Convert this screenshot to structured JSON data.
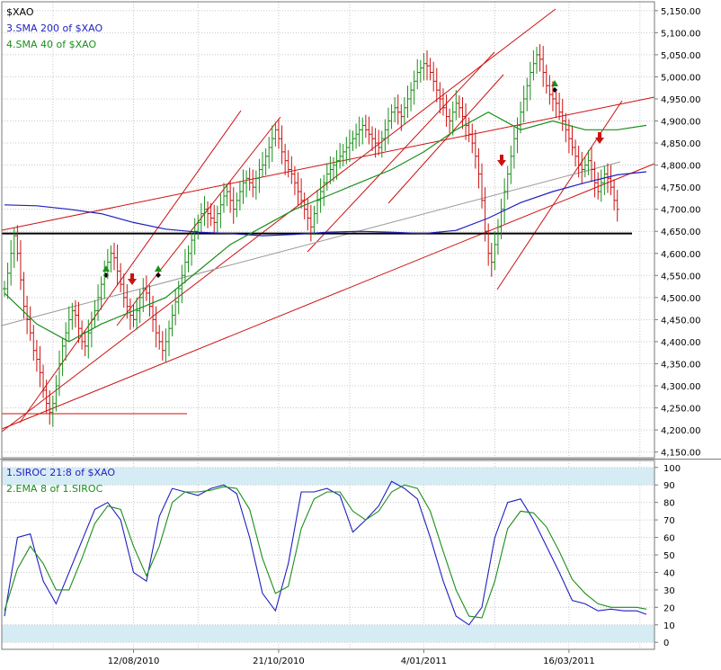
{
  "chart_data": [
    {
      "type": "line",
      "title": "$XAO",
      "x_ticks": [
        "12/08/2010",
        "21/10/2010",
        "4/01/2011",
        "16/03/2011"
      ],
      "y_ticks": [
        4150,
        4200,
        4250,
        4300,
        4350,
        4400,
        4450,
        4500,
        4550,
        4600,
        4650,
        4700,
        4750,
        4800,
        4850,
        4900,
        4950,
        5000,
        5050,
        5100,
        5150
      ],
      "y_tick_labels": [
        "4,150.00",
        "4,200.00",
        "4,250.00",
        "4,300.00",
        "4,350.00",
        "4,400.00",
        "4,450.00",
        "4,500.00",
        "4,550.00",
        "4,600.00",
        "4,650.00",
        "4,700.00",
        "4,750.00",
        "4,800.00",
        "4,850.00",
        "4,900.00",
        "4,950.00",
        "5,000.00",
        "5,050.00",
        "5,100.00",
        "5,150.00"
      ],
      "ylim": [
        4137,
        5170
      ],
      "grid": true,
      "horizontal_line": 4645,
      "price_close": [
        4520,
        4555,
        4600,
        4640,
        4600,
        4540,
        4480,
        4450,
        4420,
        4380,
        4360,
        4330,
        4290,
        4260,
        4240,
        4260,
        4300,
        4350,
        4390,
        4420,
        4450,
        4470,
        4460,
        4430,
        4400,
        4390,
        4420,
        4450,
        4470,
        4500,
        4530,
        4560,
        4580,
        4600,
        4590,
        4560,
        4530,
        4500,
        4480,
        4460,
        4450,
        4470,
        4500,
        4520,
        4510,
        4480,
        4450,
        4420,
        4400,
        4380,
        4400,
        4430,
        4460,
        4490,
        4520,
        4550,
        4580,
        4600,
        4630,
        4650,
        4670,
        4690,
        4700,
        4690,
        4680,
        4670,
        4690,
        4710,
        4730,
        4740,
        4720,
        4700,
        4720,
        4740,
        4760,
        4770,
        4760,
        4750,
        4770,
        4790,
        4800,
        4820,
        4840,
        4860,
        4880,
        4860,
        4830,
        4810,
        4790,
        4780,
        4760,
        4740,
        4720,
        4700,
        4680,
        4660,
        4690,
        4720,
        4740,
        4760,
        4780,
        4790,
        4800,
        4810,
        4820,
        4830,
        4840,
        4850,
        4860,
        4870,
        4880,
        4890,
        4880,
        4870,
        4860,
        4850,
        4840,
        4860,
        4880,
        4900,
        4920,
        4930,
        4920,
        4910,
        4930,
        4950,
        4970,
        4990,
        5010,
        5020,
        5030,
        5025,
        5010,
        4990,
        4970,
        4950,
        4930,
        4910,
        4900,
        4920,
        4940,
        4930,
        4910,
        4890,
        4870,
        4850,
        4820,
        4780,
        4720,
        4650,
        4600,
        4580,
        4620,
        4660,
        4700,
        4740,
        4780,
        4820,
        4860,
        4890,
        4920,
        4950,
        4980,
        5010,
        5030,
        5050,
        5040,
        5010,
        4980,
        4960,
        4950,
        4940,
        4920,
        4900,
        4880,
        4860,
        4840,
        4820,
        4800,
        4790,
        4800,
        4810,
        4790,
        4760,
        4740,
        4760,
        4780,
        4770,
        4750,
        4720,
        4700
      ],
      "series": [
        {
          "name": "3.SMA 200 of $XAO",
          "color": "#1f1fbf",
          "x": [
            0,
            10,
            20,
            30,
            40,
            50,
            60,
            70,
            80,
            90,
            100,
            110,
            120,
            130,
            140,
            150,
            160,
            170,
            180,
            190,
            199
          ],
          "y": [
            4710,
            4708,
            4700,
            4690,
            4670,
            4655,
            4648,
            4645,
            4640,
            4643,
            4648,
            4650,
            4648,
            4645,
            4652,
            4680,
            4715,
            4740,
            4760,
            4778,
            4785
          ]
        },
        {
          "name": "4.SMA 40 of $XAO",
          "color": "#1a8f1a",
          "x": [
            0,
            10,
            20,
            30,
            40,
            50,
            60,
            70,
            80,
            90,
            100,
            110,
            120,
            130,
            140,
            150,
            160,
            170,
            180,
            190,
            199
          ],
          "y": [
            4510,
            4440,
            4400,
            4440,
            4470,
            4500,
            4560,
            4620,
            4660,
            4700,
            4730,
            4760,
            4790,
            4830,
            4880,
            4920,
            4880,
            4900,
            4880,
            4880,
            4890
          ]
        }
      ]
    },
    {
      "type": "line",
      "x_ticks": [
        "12/08/2010",
        "21/10/2010",
        "4/01/2011",
        "16/03/2011"
      ],
      "y_ticks": [
        0,
        10,
        20,
        30,
        40,
        50,
        60,
        70,
        80,
        90,
        100
      ],
      "ylim": [
        -4,
        104
      ],
      "bands": [
        [
          90,
          100
        ],
        [
          0,
          10
        ]
      ],
      "series": [
        {
          "name": "1.SIROC 21:8 of $XAO",
          "color": "#1f1fbf",
          "x": [
            0,
            4,
            8,
            12,
            16,
            20,
            24,
            28,
            32,
            36,
            40,
            44,
            48,
            52,
            56,
            60,
            64,
            68,
            72,
            76,
            80,
            84,
            88,
            92,
            96,
            100,
            104,
            108,
            112,
            116,
            120,
            124,
            128,
            132,
            136,
            140,
            144,
            148,
            152,
            156,
            160,
            164,
            168,
            172,
            176,
            180,
            184,
            188,
            192,
            196,
            199
          ],
          "y": [
            15,
            60,
            62,
            35,
            22,
            40,
            58,
            76,
            80,
            70,
            40,
            35,
            72,
            88,
            86,
            84,
            88,
            90,
            85,
            60,
            28,
            18,
            45,
            86,
            86,
            88,
            84,
            63,
            70,
            78,
            92,
            88,
            82,
            60,
            35,
            15,
            10,
            20,
            60,
            80,
            82,
            70,
            55,
            40,
            24,
            22,
            18,
            19,
            18,
            18,
            16
          ]
        },
        {
          "name": "2.EMA 8 of 1.SIROC",
          "color": "#1a8f1a",
          "x": [
            0,
            4,
            8,
            12,
            16,
            20,
            24,
            28,
            32,
            36,
            40,
            44,
            48,
            52,
            56,
            60,
            64,
            68,
            72,
            76,
            80,
            84,
            88,
            92,
            96,
            100,
            104,
            108,
            112,
            116,
            120,
            124,
            128,
            132,
            136,
            140,
            144,
            148,
            152,
            156,
            160,
            164,
            168,
            172,
            176,
            180,
            184,
            188,
            192,
            196,
            199
          ],
          "y": [
            18,
            42,
            55,
            45,
            30,
            30,
            48,
            68,
            78,
            76,
            55,
            38,
            55,
            80,
            86,
            86,
            87,
            89,
            88,
            76,
            48,
            28,
            32,
            65,
            82,
            86,
            86,
            75,
            70,
            75,
            86,
            90,
            88,
            75,
            52,
            30,
            15,
            14,
            35,
            65,
            75,
            74,
            66,
            52,
            36,
            28,
            22,
            20,
            20,
            20,
            19
          ]
        }
      ]
    }
  ],
  "indicator_lines": {
    "top_legend_1": "$XAO",
    "top_legend_2": "3.SMA 200  of $XAO",
    "top_legend_3": "4.SMA 40  of $XAO",
    "bottom_legend_1": "1.SIROC 21:8  of $XAO",
    "bottom_legend_2": "2.EMA 8  of 1.SIROC"
  },
  "colors": {
    "background": "#ffffff",
    "grid": "#c8c8c8",
    "frame": "#7a7a7a",
    "up_bar": "#1a8f1a",
    "down_bar": "#cc1111",
    "channel": "#cc1111",
    "sma200": "#1f1fbf",
    "sma40": "#1a8f1a",
    "trendline_grey": "#999999",
    "hline": "#000000",
    "band": "#d6ecf5",
    "legend_main": "#000000",
    "legend_blue": "#1f1fbf",
    "legend_green": "#1a8f1a"
  }
}
